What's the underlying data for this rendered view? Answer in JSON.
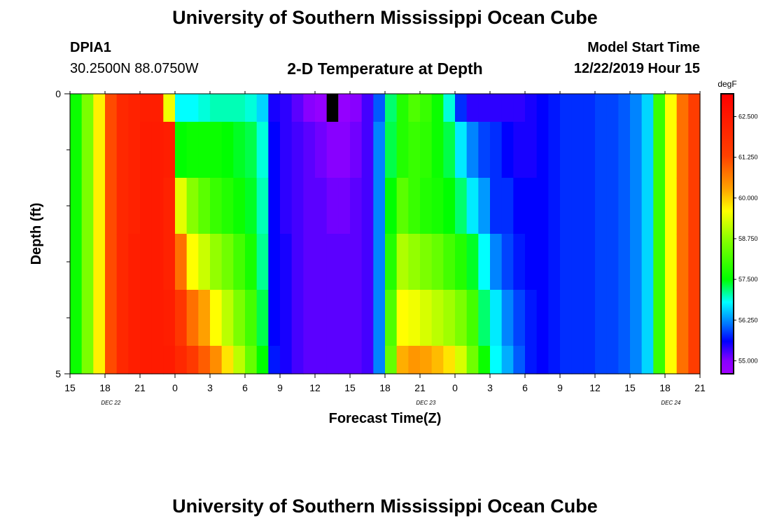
{
  "page": {
    "title": "University of Southern Mississippi Ocean Cube",
    "footer_title": "University of Southern Mississippi Ocean Cube",
    "station_id": "DPIA1",
    "location": "30.2500N 88.0750W",
    "plot_title": "2-D Temperature at Depth",
    "model_start_label": "Model Start Time",
    "model_start_value": "12/22/2019 Hour 15"
  },
  "chart_data": {
    "type": "heatmap",
    "title": "2-D Temperature at Depth",
    "xlabel": "Forecast Time(Z)",
    "ylabel": "Depth (ft)",
    "x_start": "12/22/2019 Hour 15",
    "x_range_hours": [
      0,
      54
    ],
    "x_ticks": [
      "15",
      "18",
      "21",
      "0",
      "3",
      "6",
      "9",
      "12",
      "15",
      "18",
      "21",
      "0",
      "3",
      "6",
      "9",
      "12",
      "15",
      "18",
      "21"
    ],
    "date_labels": [
      "DEC 22",
      "DEC 23",
      "DEC 24"
    ],
    "ylim": [
      0,
      5
    ],
    "y_ticks": [
      "0",
      "5"
    ],
    "y_minor_ticks": [
      1,
      2,
      3,
      4
    ],
    "depth_layers": [
      {
        "from": 0.0,
        "to": 0.5
      },
      {
        "from": 0.5,
        "to": 1.5
      },
      {
        "from": 1.5,
        "to": 2.5
      },
      {
        "from": 2.5,
        "to": 3.5
      },
      {
        "from": 3.5,
        "to": 4.5
      },
      {
        "from": 4.5,
        "to": 5.0
      }
    ],
    "missing_marker": {
      "hour": 22,
      "depth_from": 0.0,
      "depth_to": 0.5
    },
    "columns": [
      {
        "from": 0,
        "to": 1,
        "values": [
          57.6,
          57.6,
          57.6,
          57.6,
          57.6,
          57.6
        ]
      },
      {
        "from": 1,
        "to": 2,
        "values": [
          58.6,
          58.6,
          58.6,
          58.6,
          58.6,
          58.6
        ]
      },
      {
        "from": 2,
        "to": 3,
        "values": [
          59.7,
          59.7,
          59.7,
          59.7,
          59.7,
          59.7
        ]
      },
      {
        "from": 3,
        "to": 4,
        "values": [
          61.2,
          61.2,
          61.2,
          61.2,
          61.2,
          61.2
        ]
      },
      {
        "from": 4,
        "to": 5,
        "values": [
          62.0,
          62.0,
          62.0,
          62.0,
          62.0,
          62.0
        ]
      },
      {
        "from": 5,
        "to": 6,
        "values": [
          62.2,
          62.2,
          62.2,
          62.3,
          62.3,
          62.3
        ]
      },
      {
        "from": 6,
        "to": 7,
        "values": [
          62.3,
          62.4,
          62.4,
          62.4,
          62.4,
          62.4
        ]
      },
      {
        "from": 7,
        "to": 8,
        "values": [
          62.3,
          62.4,
          62.4,
          62.4,
          62.4,
          62.4
        ]
      },
      {
        "from": 8,
        "to": 9,
        "values": [
          59.5,
          62.3,
          62.2,
          62.2,
          62.3,
          62.4
        ]
      },
      {
        "from": 9,
        "to": 10,
        "values": [
          56.8,
          57.5,
          59.4,
          60.8,
          61.6,
          62.0
        ]
      },
      {
        "from": 10,
        "to": 11,
        "values": [
          56.8,
          57.6,
          58.7,
          59.6,
          60.8,
          61.5
        ]
      },
      {
        "from": 11,
        "to": 12,
        "values": [
          56.9,
          57.6,
          58.3,
          59.2,
          60.3,
          61.0
        ]
      },
      {
        "from": 12,
        "to": 13,
        "values": [
          57.0,
          57.6,
          58.0,
          58.8,
          59.6,
          60.5
        ]
      },
      {
        "from": 13,
        "to": 14,
        "values": [
          57.0,
          57.5,
          57.8,
          58.5,
          59.1,
          59.8
        ]
      },
      {
        "from": 14,
        "to": 15,
        "values": [
          57.0,
          57.4,
          57.6,
          58.1,
          58.6,
          59.1
        ]
      },
      {
        "from": 15,
        "to": 16,
        "values": [
          56.9,
          57.3,
          57.4,
          57.7,
          58.1,
          58.4
        ]
      },
      {
        "from": 16,
        "to": 17,
        "values": [
          56.6,
          56.9,
          57.0,
          57.1,
          57.3,
          57.5
        ]
      },
      {
        "from": 17,
        "to": 18,
        "values": [
          55.5,
          55.6,
          55.6,
          55.6,
          55.6,
          55.7
        ]
      },
      {
        "from": 18,
        "to": 19,
        "values": [
          55.4,
          55.4,
          55.4,
          55.5,
          55.5,
          55.5
        ]
      },
      {
        "from": 19,
        "to": 20,
        "values": [
          55.2,
          55.3,
          55.3,
          55.3,
          55.3,
          55.3
        ]
      },
      {
        "from": 20,
        "to": 21,
        "values": [
          55.0,
          55.2,
          55.2,
          55.2,
          55.2,
          55.2
        ]
      },
      {
        "from": 21,
        "to": 22,
        "values": [
          54.8,
          55.1,
          55.2,
          55.2,
          55.2,
          55.2
        ]
      },
      {
        "from": 22,
        "to": 23,
        "values": [
          null,
          55.0,
          55.1,
          55.2,
          55.2,
          55.2
        ]
      },
      {
        "from": 23,
        "to": 24,
        "values": [
          54.8,
          55.0,
          55.1,
          55.2,
          55.2,
          55.2
        ]
      },
      {
        "from": 24,
        "to": 25,
        "values": [
          55.0,
          55.1,
          55.2,
          55.2,
          55.2,
          55.2
        ]
      },
      {
        "from": 25,
        "to": 26,
        "values": [
          55.3,
          55.3,
          55.3,
          55.3,
          55.3,
          55.3
        ]
      },
      {
        "from": 26,
        "to": 27,
        "values": [
          56.0,
          56.2,
          56.2,
          56.2,
          56.2,
          56.2
        ]
      },
      {
        "from": 27,
        "to": 28,
        "values": [
          57.2,
          57.3,
          57.5,
          57.8,
          58.2,
          58.4
        ]
      },
      {
        "from": 28,
        "to": 29,
        "values": [
          57.8,
          57.8,
          58.3,
          59.0,
          59.6,
          60.2
        ]
      },
      {
        "from": 29,
        "to": 30,
        "values": [
          58.2,
          58.0,
          58.0,
          58.8,
          59.5,
          60.4
        ]
      },
      {
        "from": 30,
        "to": 31,
        "values": [
          58.0,
          57.9,
          57.8,
          58.6,
          59.3,
          60.3
        ]
      },
      {
        "from": 31,
        "to": 32,
        "values": [
          57.6,
          57.6,
          57.7,
          58.4,
          59.1,
          60.1
        ]
      },
      {
        "from": 32,
        "to": 33,
        "values": [
          56.9,
          57.3,
          57.5,
          58.1,
          58.9,
          59.8
        ]
      },
      {
        "from": 33,
        "to": 34,
        "values": [
          55.8,
          56.7,
          57.2,
          57.8,
          58.6,
          59.3
        ]
      },
      {
        "from": 34,
        "to": 35,
        "values": [
          55.4,
          56.2,
          56.7,
          57.4,
          58.1,
          58.5
        ]
      },
      {
        "from": 35,
        "to": 36,
        "values": [
          55.4,
          55.9,
          56.3,
          56.8,
          57.2,
          57.6
        ]
      },
      {
        "from": 36,
        "to": 37,
        "values": [
          55.4,
          55.8,
          55.8,
          56.2,
          56.7,
          56.8
        ]
      },
      {
        "from": 37,
        "to": 38,
        "values": [
          55.4,
          55.6,
          55.8,
          55.9,
          56.2,
          56.4
        ]
      },
      {
        "from": 38,
        "to": 39,
        "values": [
          55.4,
          55.5,
          55.6,
          55.7,
          55.9,
          56.0
        ]
      },
      {
        "from": 39,
        "to": 40,
        "values": [
          55.5,
          55.5,
          55.6,
          55.6,
          55.7,
          55.7
        ]
      },
      {
        "from": 40,
        "to": 41,
        "values": [
          55.6,
          55.6,
          55.6,
          55.6,
          55.6,
          55.6
        ]
      },
      {
        "from": 41,
        "to": 42,
        "values": [
          55.7,
          55.7,
          55.7,
          55.7,
          55.7,
          55.7
        ]
      },
      {
        "from": 42,
        "to": 43,
        "values": [
          55.8,
          55.8,
          55.8,
          55.8,
          55.8,
          55.8
        ]
      },
      {
        "from": 43,
        "to": 44,
        "values": [
          55.8,
          55.8,
          55.8,
          55.8,
          55.8,
          55.8
        ]
      },
      {
        "from": 44,
        "to": 45,
        "values": [
          55.8,
          55.8,
          55.8,
          55.8,
          55.8,
          55.8
        ]
      },
      {
        "from": 45,
        "to": 46,
        "values": [
          55.9,
          55.9,
          55.9,
          55.9,
          55.9,
          55.9
        ]
      },
      {
        "from": 46,
        "to": 47,
        "values": [
          55.9,
          55.9,
          55.9,
          55.9,
          55.9,
          55.9
        ]
      },
      {
        "from": 47,
        "to": 48,
        "values": [
          56.0,
          56.0,
          56.0,
          56.0,
          56.0,
          56.0
        ]
      },
      {
        "from": 48,
        "to": 49,
        "values": [
          56.2,
          56.2,
          56.2,
          56.2,
          56.2,
          56.2
        ]
      },
      {
        "from": 49,
        "to": 50,
        "values": [
          56.6,
          56.6,
          56.6,
          56.6,
          56.6,
          56.6
        ]
      },
      {
        "from": 50,
        "to": 51,
        "values": [
          58.0,
          58.0,
          58.0,
          58.0,
          58.0,
          58.0
        ]
      },
      {
        "from": 51,
        "to": 52,
        "values": [
          59.6,
          59.6,
          59.6,
          59.6,
          59.6,
          59.6
        ]
      },
      {
        "from": 52,
        "to": 53,
        "values": [
          60.8,
          60.8,
          60.8,
          60.8,
          60.8,
          60.8
        ]
      },
      {
        "from": 53,
        "to": 54,
        "values": [
          61.4,
          61.4,
          61.4,
          61.4,
          61.4,
          61.4
        ]
      }
    ],
    "colorbar": {
      "unit": "degF",
      "range": [
        54.6,
        63.2
      ],
      "tick_labels": [
        "62.500",
        "61.250",
        "60.000",
        "58.750",
        "57.500",
        "56.250",
        "55.000"
      ],
      "tick_values": [
        62.5,
        61.25,
        60.0,
        58.75,
        57.5,
        56.25,
        55.0
      ],
      "stops": [
        {
          "value": 54.6,
          "color": "#a000ff"
        },
        {
          "value": 55.0,
          "color": "#8800ff"
        },
        {
          "value": 55.6,
          "color": "#0000ff"
        },
        {
          "value": 56.1,
          "color": "#0070ff"
        },
        {
          "value": 56.8,
          "color": "#00ffff"
        },
        {
          "value": 57.5,
          "color": "#00ff00"
        },
        {
          "value": 58.75,
          "color": "#8cff00"
        },
        {
          "value": 59.6,
          "color": "#ffff00"
        },
        {
          "value": 60.3,
          "color": "#ffa000"
        },
        {
          "value": 61.3,
          "color": "#ff4000"
        },
        {
          "value": 63.2,
          "color": "#ff0000"
        }
      ]
    },
    "grid": false
  }
}
